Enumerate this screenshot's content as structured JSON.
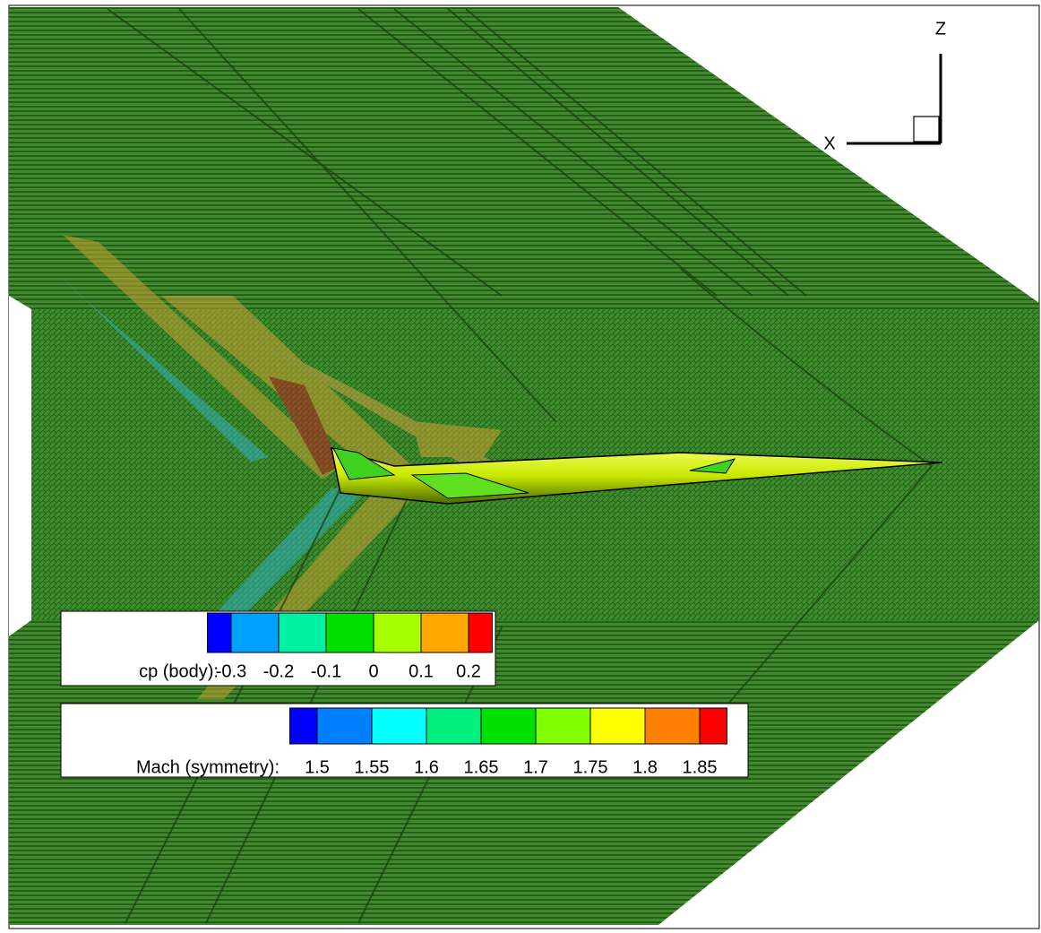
{
  "axes": {
    "z": "Z",
    "x": "X"
  },
  "legends": [
    {
      "title": "cp (body):",
      "levels": [
        -0.3,
        -0.2,
        -0.1,
        0,
        0.1,
        0.2
      ],
      "colors": [
        "#0000ff",
        "#00a0ff",
        "#00f0a0",
        "#00e000",
        "#a8ff00",
        "#ffa800",
        "#ff0000"
      ]
    },
    {
      "title": "Mach (symmetry):",
      "levels": [
        1.5,
        1.55,
        1.6,
        1.65,
        1.7,
        1.75,
        1.8,
        1.85
      ],
      "colors": [
        "#0000ff",
        "#0080ff",
        "#00ffff",
        "#00f080",
        "#00e000",
        "#80ff00",
        "#ffff00",
        "#ff8000",
        "#ff0000"
      ]
    }
  ]
}
